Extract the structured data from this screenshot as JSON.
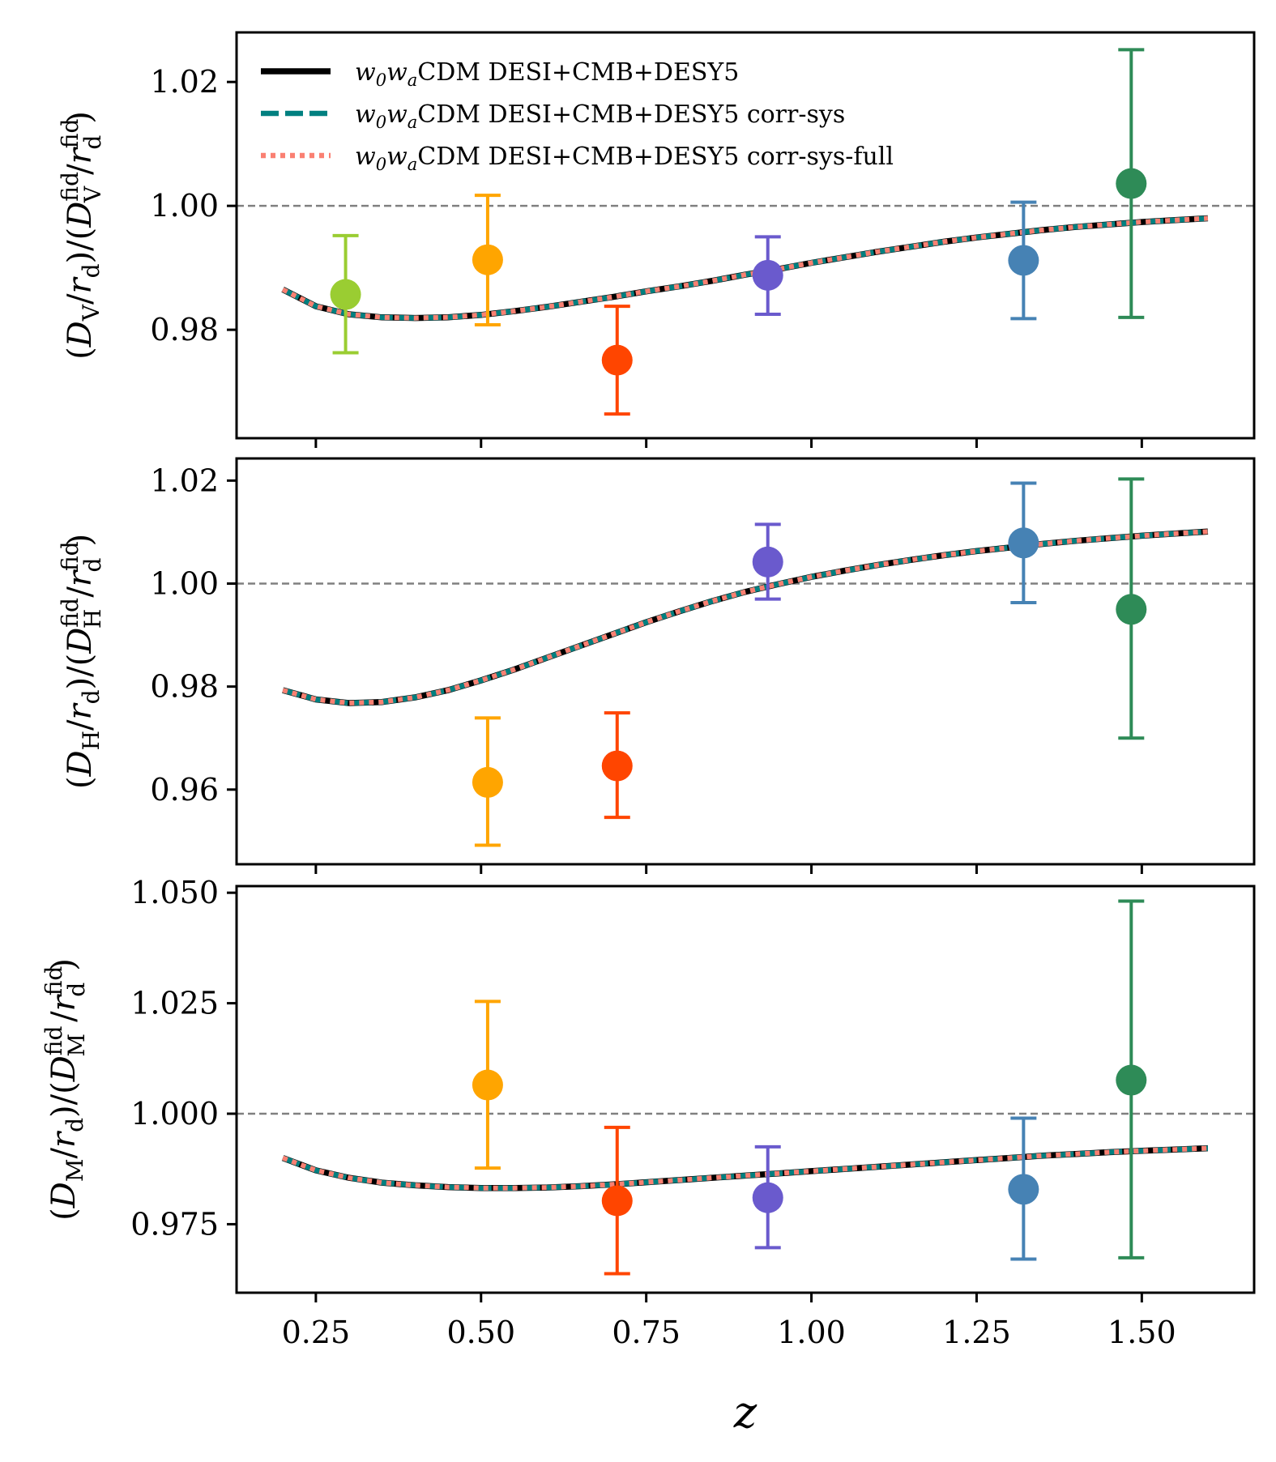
{
  "chart_data": {
    "type": "line",
    "x_axis": {
      "label": "z",
      "range": [
        0.13,
        1.67
      ],
      "ticks": [
        0.25,
        0.5,
        0.75,
        1.0,
        1.25,
        1.5
      ],
      "tick_labels": [
        "0.25",
        "0.50",
        "0.75",
        "1.00",
        "1.25",
        "1.50"
      ]
    },
    "legend": {
      "placement": "top-left",
      "entries": [
        {
          "label": "w0waCDM DESI+CMB+DESY5",
          "color": "#000000",
          "style": "solid"
        },
        {
          "label": "w0waCDM DESI+CMB+DESY5 corr-sys",
          "color": "#008080",
          "style": "dashed"
        },
        {
          "label": "w0waCDM DESI+CMB+DESY5 corr-sys-full",
          "color": "#fa8072",
          "style": "dotted"
        }
      ]
    },
    "panels": [
      {
        "name": "DV",
        "ylabel": "(D_V / r_d) / (D_V^fid / r_d^fid)",
        "ylim": [
          0.9625,
          1.028
        ],
        "yticks": [
          0.98,
          1.0,
          1.02
        ],
        "ytick_labels": [
          "0.98",
          "1.00",
          "1.02"
        ],
        "reference_line": 1.0,
        "curve": {
          "x": [
            0.2,
            0.25,
            0.3,
            0.35,
            0.4,
            0.45,
            0.5,
            0.55,
            0.6,
            0.65,
            0.7,
            0.75,
            0.8,
            0.85,
            0.9,
            0.95,
            1.0,
            1.05,
            1.1,
            1.15,
            1.2,
            1.25,
            1.3,
            1.35,
            1.4,
            1.45,
            1.5,
            1.55,
            1.6
          ],
          "y": [
            0.9865,
            0.9838,
            0.9825,
            0.982,
            0.9819,
            0.982,
            0.9824,
            0.983,
            0.9837,
            0.9845,
            0.9853,
            0.9862,
            0.987,
            0.9879,
            0.9889,
            0.9898,
            0.9908,
            0.9917,
            0.9926,
            0.9934,
            0.9942,
            0.9949,
            0.9955,
            0.9961,
            0.9966,
            0.997,
            0.9974,
            0.9977,
            0.998
          ]
        },
        "points": [
          {
            "z": 0.295,
            "value": 0.9857,
            "err_low": 0.9763,
            "err_high": 0.9952,
            "color": "#9acd32"
          },
          {
            "z": 0.51,
            "value": 0.9913,
            "err_low": 0.9808,
            "err_high": 1.0017,
            "color": "#ffa500"
          },
          {
            "z": 0.706,
            "value": 0.9751,
            "err_low": 0.9664,
            "err_high": 0.9838,
            "color": "#ff4500"
          },
          {
            "z": 0.934,
            "value": 0.9888,
            "err_low": 0.9825,
            "err_high": 0.995,
            "color": "#6a5acd"
          },
          {
            "z": 1.321,
            "value": 0.9912,
            "err_low": 0.9818,
            "err_high": 1.0006,
            "color": "#4682b4"
          },
          {
            "z": 1.484,
            "value": 1.0036,
            "err_low": 0.982,
            "err_high": 1.0252,
            "color": "#2e8b57"
          }
        ]
      },
      {
        "name": "DH",
        "ylabel": "(D_H / r_d) / (D_H^fid / r_d^fid)",
        "ylim": [
          0.9455,
          1.0243
        ],
        "yticks": [
          0.96,
          0.98,
          1.0,
          1.02
        ],
        "ytick_labels": [
          "0.96",
          "0.98",
          "1.00",
          "1.02"
        ],
        "reference_line": 1.0,
        "curve": {
          "x": [
            0.2,
            0.25,
            0.3,
            0.35,
            0.4,
            0.45,
            0.5,
            0.55,
            0.6,
            0.65,
            0.7,
            0.75,
            0.8,
            0.85,
            0.9,
            0.95,
            1.0,
            1.05,
            1.1,
            1.15,
            1.2,
            1.25,
            1.3,
            1.35,
            1.4,
            1.45,
            1.5,
            1.55,
            1.6
          ],
          "y": [
            0.9793,
            0.9775,
            0.9768,
            0.977,
            0.9779,
            0.9793,
            0.9812,
            0.9833,
            0.9856,
            0.9879,
            0.9902,
            0.9925,
            0.9946,
            0.9966,
            0.9984,
            0.9999,
            1.0013,
            1.0025,
            1.0036,
            1.0046,
            1.0055,
            1.0063,
            1.007,
            1.0077,
            1.0083,
            1.0088,
            1.0093,
            1.0097,
            1.0101
          ]
        },
        "points": [
          {
            "z": 0.51,
            "value": 0.9614,
            "err_low": 0.9492,
            "err_high": 0.9739,
            "color": "#ffa500"
          },
          {
            "z": 0.706,
            "value": 0.9646,
            "err_low": 0.9546,
            "err_high": 0.9749,
            "color": "#ff4500"
          },
          {
            "z": 0.934,
            "value": 1.0042,
            "err_low": 0.997,
            "err_high": 1.0115,
            "color": "#6a5acd"
          },
          {
            "z": 1.321,
            "value": 1.0079,
            "err_low": 0.9963,
            "err_high": 1.0195,
            "color": "#4682b4"
          },
          {
            "z": 1.484,
            "value": 0.995,
            "err_low": 0.97,
            "err_high": 1.0203,
            "color": "#2e8b57"
          }
        ]
      },
      {
        "name": "DM",
        "ylabel": "(D_M / r_d) / (D_M^fid / r_d^fid)",
        "ylim": [
          0.9595,
          1.0515
        ],
        "yticks": [
          0.975,
          1.0,
          1.025,
          1.05
        ],
        "ytick_labels": [
          "0.975",
          "1.000",
          "1.025",
          "1.050"
        ],
        "reference_line": 1.0,
        "curve": {
          "x": [
            0.2,
            0.25,
            0.3,
            0.35,
            0.4,
            0.45,
            0.5,
            0.55,
            0.6,
            0.65,
            0.7,
            0.75,
            0.8,
            0.85,
            0.9,
            0.95,
            1.0,
            1.05,
            1.1,
            1.15,
            1.2,
            1.25,
            1.3,
            1.35,
            1.4,
            1.45,
            1.5,
            1.55,
            1.6
          ],
          "y": [
            0.99,
            0.9872,
            0.9855,
            0.9844,
            0.9838,
            0.9834,
            0.9832,
            0.9832,
            0.9833,
            0.9836,
            0.984,
            0.9845,
            0.985,
            0.9855,
            0.986,
            0.9865,
            0.987,
            0.9875,
            0.988,
            0.9885,
            0.989,
            0.9895,
            0.99,
            0.9905,
            0.9909,
            0.9913,
            0.9916,
            0.9919,
            0.9922
          ]
        },
        "points": [
          {
            "z": 0.51,
            "value": 1.0065,
            "err_low": 0.9877,
            "err_high": 1.0254,
            "color": "#ffa500"
          },
          {
            "z": 0.706,
            "value": 0.9803,
            "err_low": 0.9638,
            "err_high": 0.9969,
            "color": "#ff4500"
          },
          {
            "z": 0.934,
            "value": 0.981,
            "err_low": 0.9697,
            "err_high": 0.9925,
            "color": "#6a5acd"
          },
          {
            "z": 1.321,
            "value": 0.9829,
            "err_low": 0.9671,
            "err_high": 0.999,
            "color": "#4682b4"
          },
          {
            "z": 1.484,
            "value": 1.0076,
            "err_low": 0.9674,
            "err_high": 1.0481,
            "color": "#2e8b57"
          }
        ]
      }
    ]
  }
}
